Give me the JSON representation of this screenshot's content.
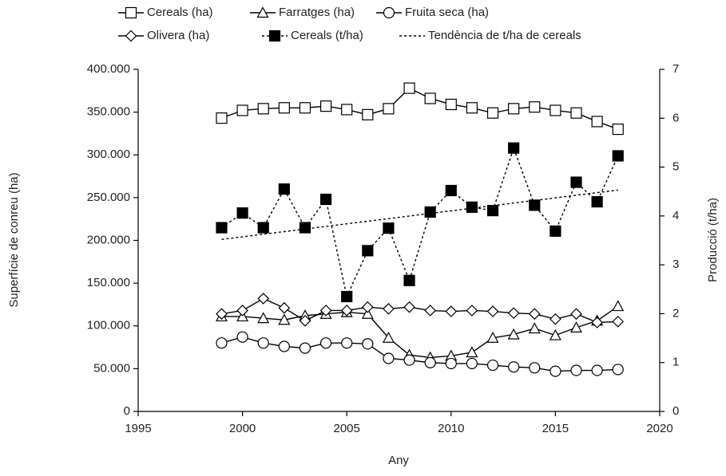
{
  "chart_data": {
    "type": "line",
    "xlabel": "Any",
    "ylabel": "Superfície de conreu (ha)",
    "y2label": "Producció (t/ha)",
    "x": [
      1999,
      2000,
      2001,
      2002,
      2003,
      2004,
      2005,
      2006,
      2007,
      2008,
      2009,
      2010,
      2011,
      2012,
      2013,
      2014,
      2015,
      2016,
      2017,
      2018
    ],
    "xlim": [
      1995,
      2020
    ],
    "xticks": [
      1995,
      2000,
      2005,
      2010,
      2015,
      2020
    ],
    "ylim": [
      0,
      400000
    ],
    "yticks": [
      0,
      {
        "value": 50000,
        "label": "50.000"
      },
      {
        "value": 100000,
        "label": "100.000"
      },
      {
        "value": 150000,
        "label": "150.000"
      },
      {
        "value": 200000,
        "label": "200.000"
      },
      {
        "value": 250000,
        "label": "250.000"
      },
      {
        "value": 300000,
        "label": "300.000"
      },
      {
        "value": 350000,
        "label": "350.000"
      },
      {
        "value": 400000,
        "label": "400.000"
      }
    ],
    "y2lim": [
      0,
      7
    ],
    "y2ticks": [
      0,
      1,
      2,
      3,
      4,
      5,
      6,
      7
    ],
    "series": [
      {
        "name": "Cereals (ha)",
        "color": "#000000",
        "marker": "square",
        "dash": false,
        "values": [
          343000,
          352000,
          354000,
          355000,
          355000,
          357000,
          353000,
          347000,
          354000,
          378000,
          366000,
          359000,
          355000,
          349000,
          354000,
          356000,
          352000,
          349000,
          339000,
          330000
        ]
      },
      {
        "name": "Farratges (ha)",
        "color": "#000000",
        "marker": "triangle",
        "dash": false,
        "values": [
          111000,
          111000,
          109000,
          107000,
          112000,
          114000,
          116000,
          114000,
          86000,
          66000,
          63000,
          65000,
          69000,
          86000,
          90000,
          97000,
          89000,
          98000,
          106000,
          123000
        ]
      },
      {
        "name": "Fruita seca (ha)",
        "color": "#000000",
        "marker": "circle",
        "dash": false,
        "values": [
          80000,
          87000,
          80000,
          76000,
          74000,
          80000,
          80000,
          79000,
          62000,
          60000,
          57000,
          56000,
          56000,
          54000,
          52000,
          51000,
          47000,
          48000,
          48000,
          49000
        ]
      },
      {
        "name": "Olivera (ha)",
        "color": "#000000",
        "marker": "diamond",
        "dash": false,
        "values": [
          114000,
          118000,
          132000,
          121000,
          106000,
          118000,
          118000,
          122000,
          120000,
          122000,
          118000,
          117000,
          118000,
          117000,
          115000,
          114000,
          108000,
          114000,
          104000,
          105000
        ]
      },
      {
        "name": "Cereals (t/ha)",
        "color": "#000000",
        "marker": "square-filled",
        "dash": true,
        "axis": "y2",
        "values": [
          3.76,
          4.06,
          3.76,
          4.55,
          3.76,
          4.34,
          2.35,
          3.29,
          3.75,
          2.68,
          4.08,
          4.52,
          4.18,
          4.11,
          5.39,
          4.22,
          3.69,
          4.69,
          4.29,
          5.23
        ]
      },
      {
        "name": "Tendència de t/ha de cereals",
        "color": "#000000",
        "marker": "none",
        "dash": true,
        "axis": "y2",
        "x": [
          1999,
          2018
        ],
        "values": [
          3.52,
          4.53
        ]
      }
    ]
  }
}
